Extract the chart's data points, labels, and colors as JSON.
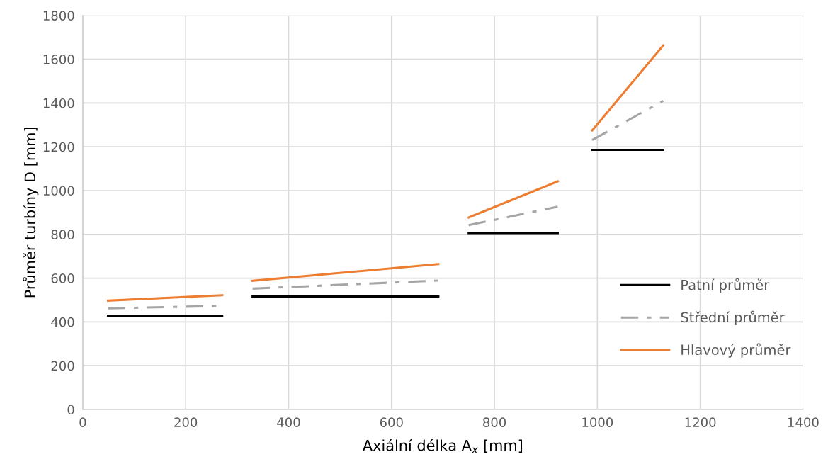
{
  "chart_data": {
    "type": "line",
    "xlabel": "Axiální délka A$_{x}$ [mm]",
    "ylabel": "Průměr turbíny D [mm]",
    "xlim": [
      0,
      1400
    ],
    "xticks": [
      0,
      200,
      400,
      600,
      800,
      1000,
      1200,
      1400
    ],
    "ylim": [
      0,
      1800
    ],
    "yticks": [
      0,
      200,
      400,
      600,
      800,
      1000,
      1200,
      1400,
      1600,
      1800
    ],
    "grid": true,
    "legend": "bottom right",
    "series": [
      {
        "name": "Patní průměr",
        "color": "#000000",
        "line_style": "solid",
        "x": [
          49,
          271,
          300,
          330,
          691,
          720,
          750,
          923,
          955,
          990,
          1128
        ],
        "values": [
          428,
          428,
          null,
          516,
          516,
          null,
          806,
          806,
          null,
          1186,
          1186
        ]
      },
      {
        "name": "Střední průměr",
        "color": "#a5a5a5",
        "line_style": "dashdot",
        "x": [
          49,
          271,
          300,
          330,
          691,
          720,
          750,
          923,
          955,
          990,
          1128
        ],
        "values": [
          462,
          473,
          null,
          552,
          589,
          null,
          842,
          926,
          null,
          1231,
          1410
        ]
      },
      {
        "name": "Hlavový průměr",
        "color": "#ed7d31",
        "line_style": "solid",
        "x": [
          49,
          271,
          300,
          330,
          691,
          720,
          750,
          923,
          955,
          990,
          1128
        ],
        "values": [
          497,
          522,
          null,
          588,
          664,
          null,
          877,
          1042,
          null,
          1275,
          1663
        ]
      }
    ]
  }
}
